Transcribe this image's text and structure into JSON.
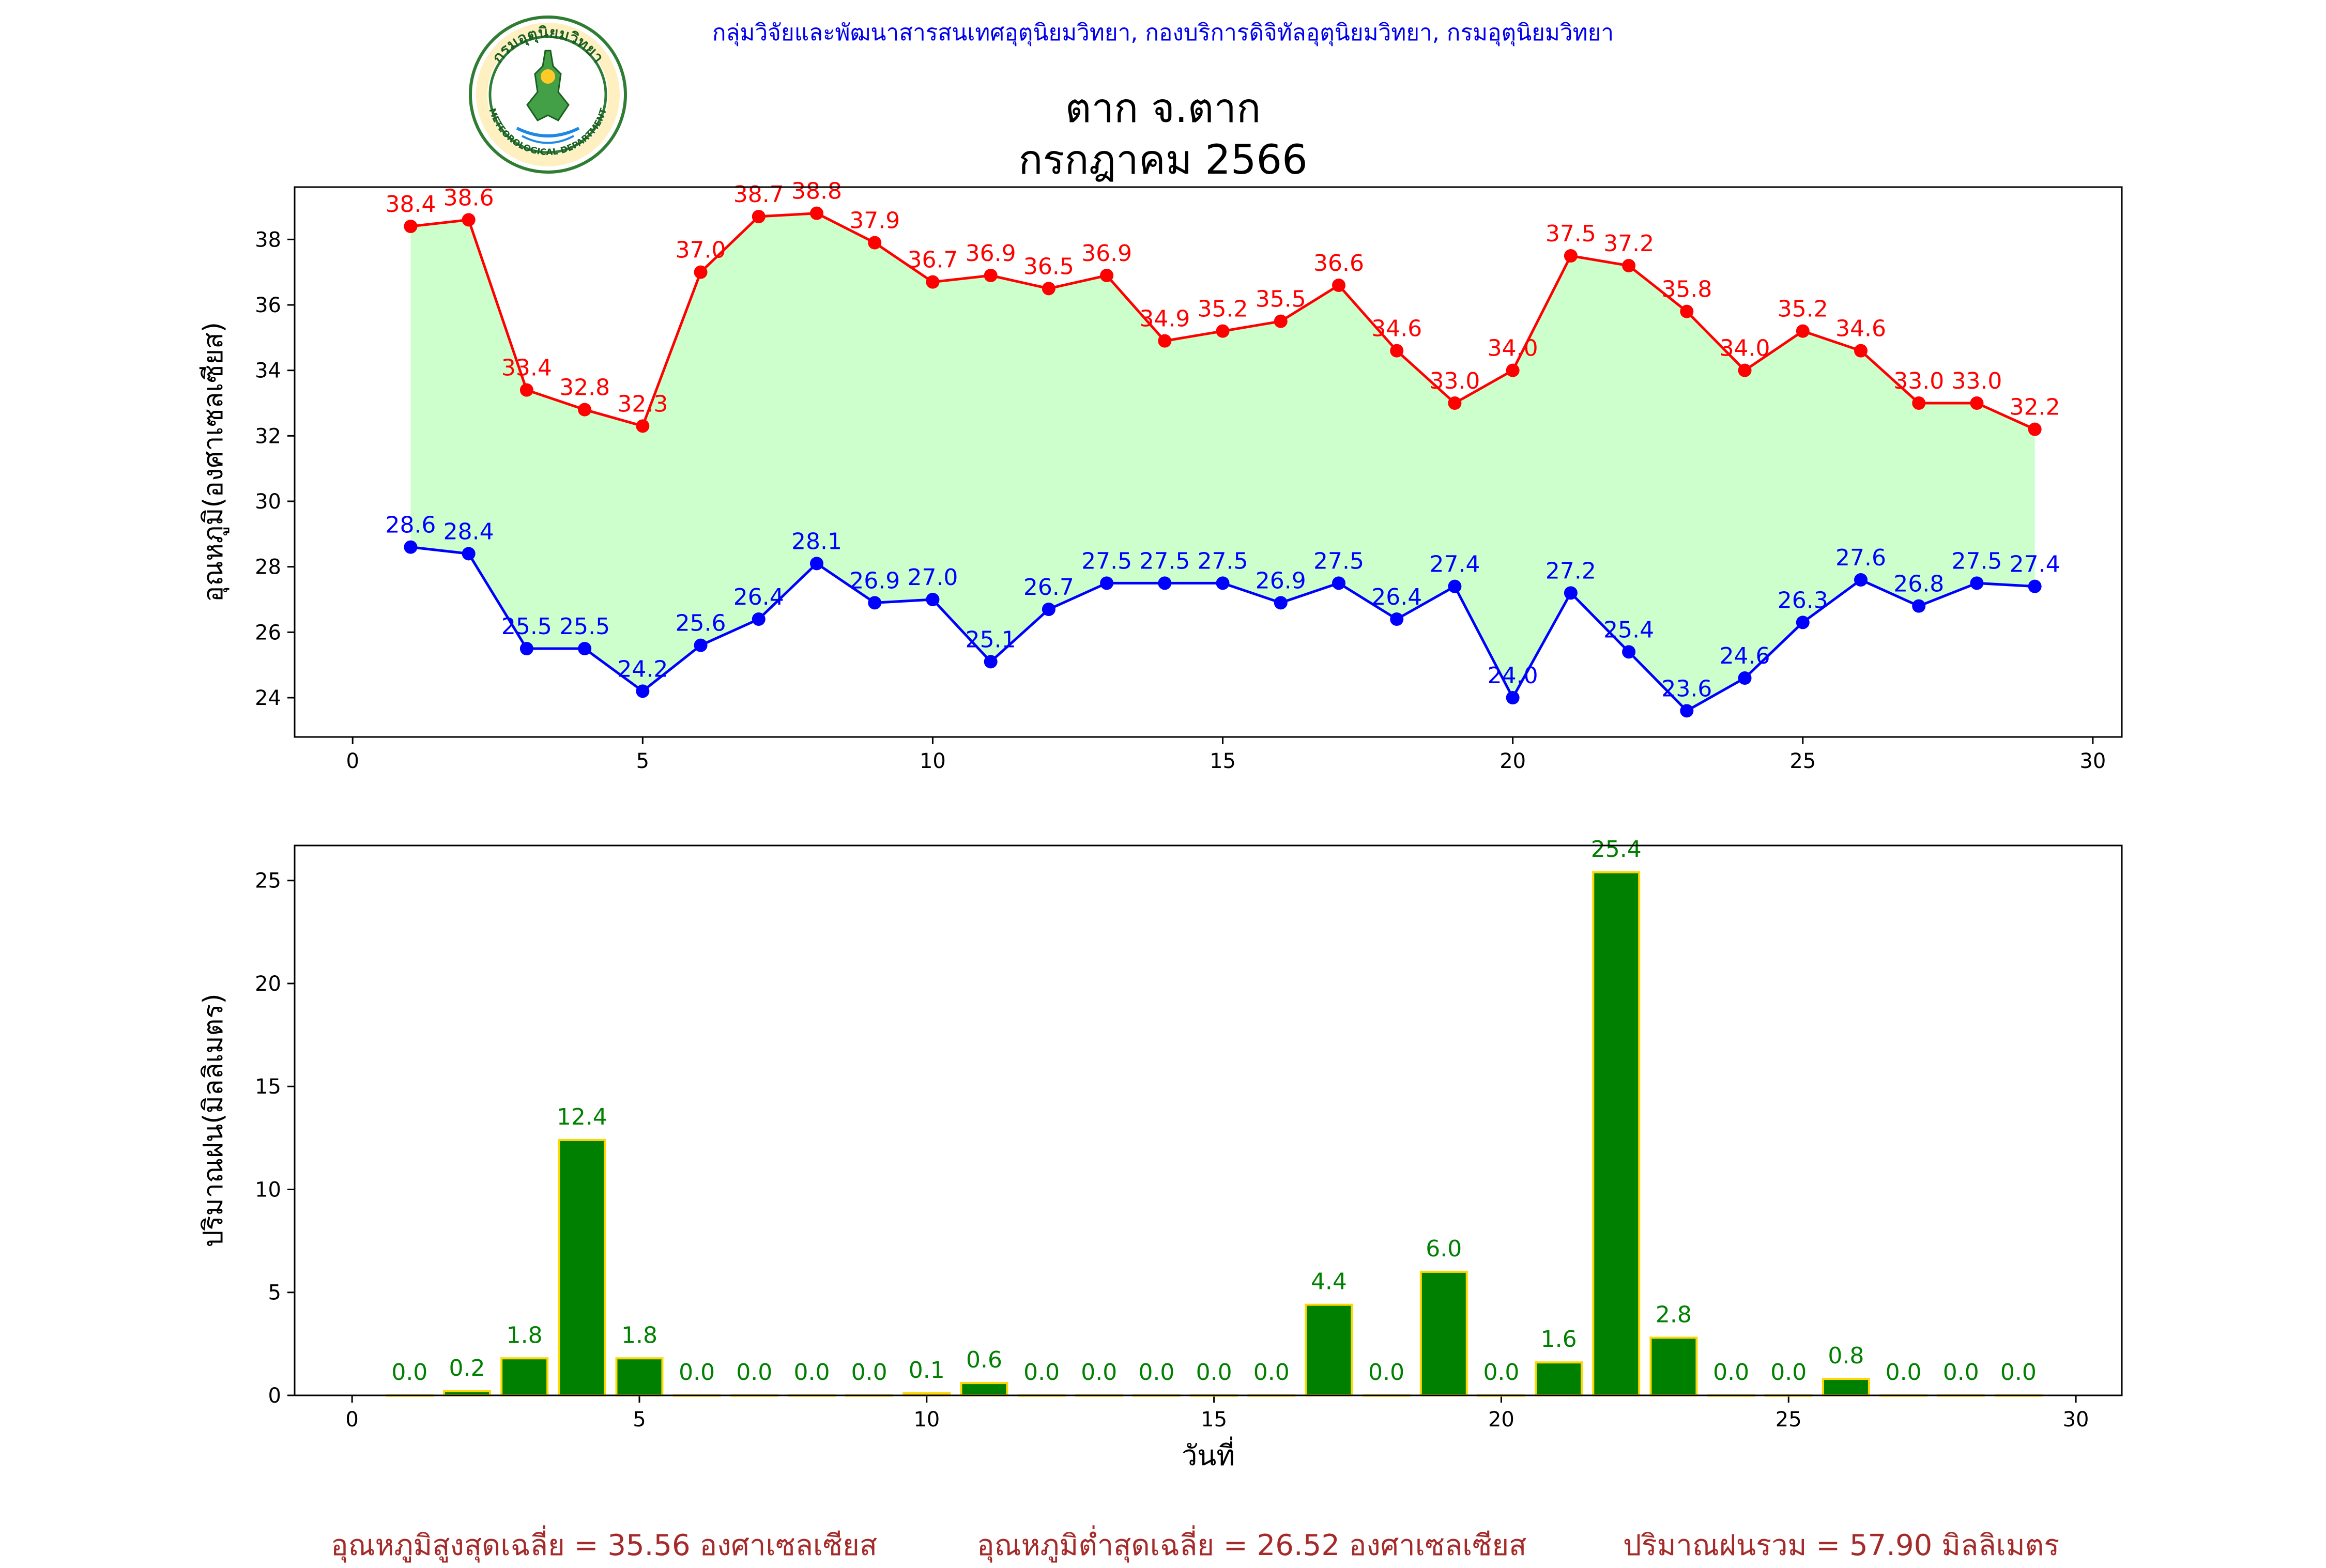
{
  "header": {
    "text": "กลุ่มวิจัยและพัฒนาสารสนเทศอุตุนิยมวิทยา, กองบริการดิจิทัลอุตุนิยมวิทยา, กรมอุตุนิยมวิทยา",
    "logo_top_text": "กรมอุตุนิยมวิทยา",
    "logo_bottom_text": "METEOROLOGICAL DEPARTMENT"
  },
  "title": {
    "line1": "ตาก จ.ตาก",
    "line2": "กรกฎาคม 2566"
  },
  "chart_data": [
    {
      "type": "line",
      "ylabel": "อุณหภูมิ(องศาเซลเซียส)",
      "xlabel": "",
      "xlim": [
        -1,
        30.5
      ],
      "ylim": [
        22.8,
        39.6
      ],
      "xticks": [
        0,
        5,
        10,
        15,
        20,
        25,
        30
      ],
      "yticks": [
        24,
        26,
        28,
        30,
        32,
        34,
        36,
        38
      ],
      "fill_between": true,
      "fill_color": "#ccffcc",
      "x": [
        1,
        2,
        3,
        4,
        5,
        6,
        7,
        8,
        9,
        10,
        11,
        12,
        13,
        14,
        15,
        16,
        17,
        18,
        19,
        20,
        21,
        22,
        23,
        24,
        25,
        26,
        27,
        28,
        29
      ],
      "series": [
        {
          "color": "#ff0000",
          "values": [
            38.4,
            38.6,
            33.4,
            32.8,
            32.3,
            37.0,
            38.7,
            38.8,
            37.9,
            36.7,
            36.9,
            36.5,
            36.9,
            34.9,
            35.2,
            35.5,
            36.6,
            34.6,
            33.0,
            34.0,
            37.5,
            37.2,
            35.8,
            34.0,
            35.2,
            34.6,
            33.0,
            33.0,
            32.2
          ]
        },
        {
          "color": "#0000ff",
          "values": [
            28.6,
            28.4,
            25.5,
            25.5,
            24.2,
            25.6,
            26.4,
            28.1,
            26.9,
            27.0,
            25.1,
            26.7,
            27.5,
            27.5,
            27.5,
            26.9,
            27.5,
            26.4,
            27.4,
            24.0,
            27.2,
            25.4,
            23.6,
            24.6,
            26.3,
            27.6,
            26.8,
            27.5,
            27.4
          ]
        }
      ]
    },
    {
      "type": "bar",
      "ylabel": "ปริมาณฝน(มิลลิเมตร)",
      "xlabel": "วันที่",
      "xlim": [
        -1,
        30.8
      ],
      "ylim": [
        0,
        26.7
      ],
      "xticks": [
        0,
        5,
        10,
        15,
        20,
        25,
        30
      ],
      "yticks": [
        0,
        5,
        10,
        15,
        20,
        25
      ],
      "bar_color": "#008000",
      "bar_edge_color": "#ffd700",
      "label_color": "#008000",
      "x": [
        1,
        2,
        3,
        4,
        5,
        6,
        7,
        8,
        9,
        10,
        11,
        12,
        13,
        14,
        15,
        16,
        17,
        18,
        19,
        20,
        21,
        22,
        23,
        24,
        25,
        26,
        27,
        28,
        29
      ],
      "values": [
        0.0,
        0.2,
        1.8,
        12.4,
        1.8,
        0.0,
        0.0,
        0.0,
        0.0,
        0.1,
        0.6,
        0.0,
        0.0,
        0.0,
        0.0,
        0.0,
        4.4,
        0.0,
        6.0,
        0.0,
        1.6,
        25.4,
        2.8,
        0.0,
        0.0,
        0.8,
        0.0,
        0.0,
        0.0
      ]
    }
  ],
  "summary": {
    "avg_max_temp": "อุณหภูมิสูงสุดเฉลี่ย = 35.56 องศาเซลเซียส",
    "avg_min_temp": "อุณหภูมิต่ำสุดเฉลี่ย = 26.52 องศาเซลเซียส",
    "total_rain": "ปริมาณฝนรวม = 57.90 มิลลิเมตร"
  }
}
